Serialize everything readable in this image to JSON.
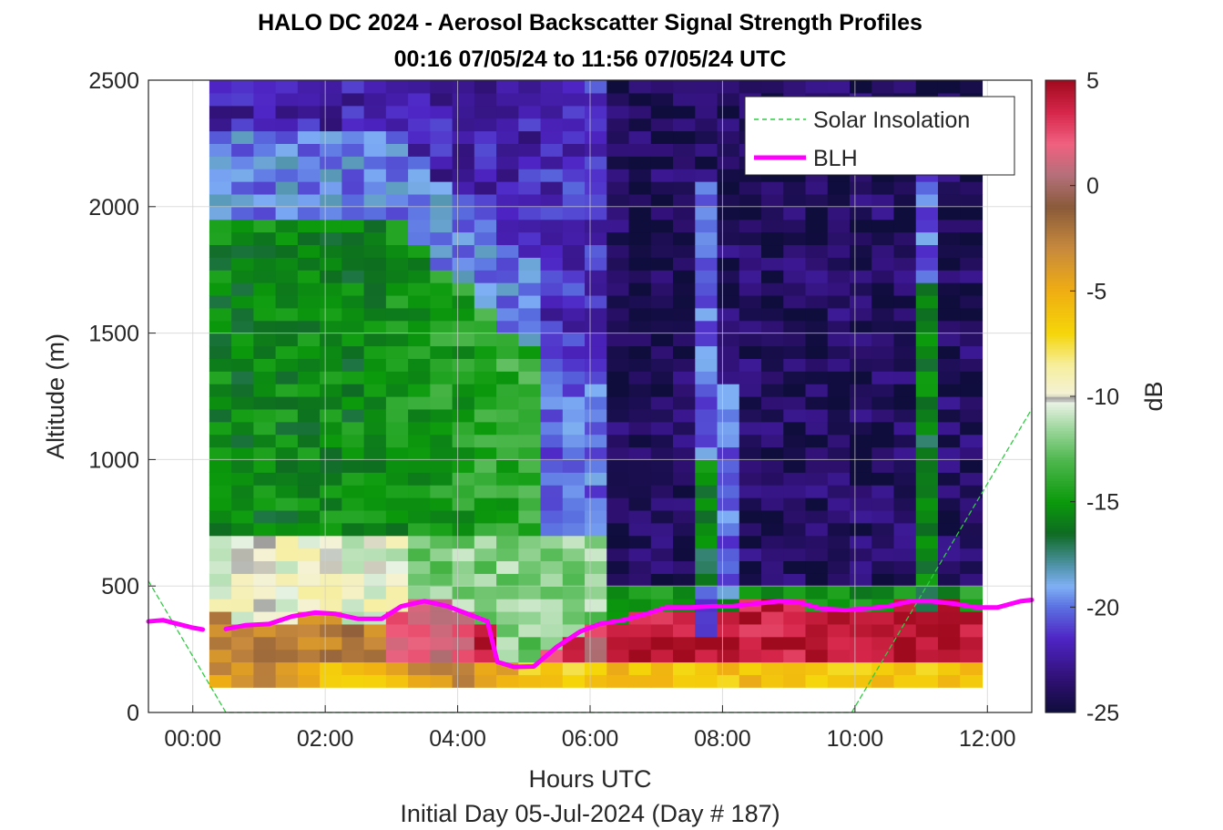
{
  "chart_data": {
    "type": "heatmap",
    "title": "HALO DC 2024 - Aerosol Backscatter Signal Strength Profiles",
    "subtitle": "00:16 07/05/24 to 11:56 07/05/24  UTC",
    "xlabel": "Hours UTC",
    "xlabel2": "Initial Day 05-Jul-2024 (Day # 187)",
    "ylabel": "Altitude (m)",
    "xlim": [
      -0.67,
      12.67
    ],
    "ylim": [
      0,
      2500
    ],
    "x_ticks": [
      0,
      2,
      4,
      6,
      8,
      10,
      12
    ],
    "x_tick_labels": [
      "00:00",
      "02:00",
      "04:00",
      "06:00",
      "08:00",
      "10:00",
      "12:00"
    ],
    "y_ticks": [
      0,
      500,
      1000,
      1500,
      2000,
      2500
    ],
    "y_tick_labels": [
      "0",
      "500",
      "1000",
      "1500",
      "2000",
      "2500"
    ],
    "grid": true,
    "colorbar": {
      "label": "dB",
      "clim": [
        -25,
        5
      ],
      "ticks": [
        5,
        0,
        -5,
        -10,
        -15,
        -20,
        -25
      ],
      "tick_labels": [
        "5",
        "0",
        "-5",
        "-10",
        "-15",
        "-20",
        "-25"
      ],
      "colormap": [
        {
          "v": -25,
          "c": "#0e0d3b"
        },
        {
          "v": -23.5,
          "c": "#2e1070"
        },
        {
          "v": -21.5,
          "c": "#4e24c4"
        },
        {
          "v": -20,
          "c": "#5a6fe0"
        },
        {
          "v": -19,
          "c": "#7fb0f5"
        },
        {
          "v": -18,
          "c": "#4f93a8"
        },
        {
          "v": -16.5,
          "c": "#0e6b22"
        },
        {
          "v": -15,
          "c": "#0b9a0b"
        },
        {
          "v": -13,
          "c": "#4fb84f"
        },
        {
          "v": -11.5,
          "c": "#9ed79e"
        },
        {
          "v": -10.3,
          "c": "#e9f2e4"
        },
        {
          "v": -10.1,
          "c": "#9a9a9a"
        },
        {
          "v": -9.9,
          "c": "#f4f2d6"
        },
        {
          "v": -8.5,
          "c": "#f6ee9c"
        },
        {
          "v": -7,
          "c": "#f5d60a"
        },
        {
          "v": -5,
          "c": "#f0ae12"
        },
        {
          "v": -3,
          "c": "#c88a3c"
        },
        {
          "v": -1,
          "c": "#8a5a3a"
        },
        {
          "v": 0.5,
          "c": "#b4707a"
        },
        {
          "v": 2,
          "c": "#f0607f"
        },
        {
          "v": 3.5,
          "c": "#d6264a"
        },
        {
          "v": 5,
          "c": "#a00a1e"
        }
      ]
    },
    "heatmap": {
      "x_start": 0.25,
      "x_end": 11.92,
      "y_start": 100,
      "y_end": 2500,
      "n_x": 35,
      "n_y": 48,
      "unit": "dB"
    },
    "series": [
      {
        "name": "Solar Insolation",
        "style": "dashed",
        "color": "#2ecc40",
        "x": [
          -0.67,
          0.5,
          9.95,
          12.67
        ],
        "y": [
          520,
          0,
          0,
          1200
        ]
      },
      {
        "name": "BLH",
        "style": "solid",
        "color": "#ff00ff",
        "x": [
          -0.67,
          -0.45,
          0.0,
          0.15,
          null,
          0.5,
          0.8,
          1.15,
          1.5,
          1.85,
          2.15,
          2.5,
          2.85,
          3.15,
          3.5,
          3.85,
          4.15,
          4.45,
          4.6,
          4.85,
          5.15,
          5.5,
          5.85,
          6.15,
          6.5,
          6.85,
          7.15,
          7.5,
          7.85,
          8.15,
          8.5,
          8.85,
          9.15,
          9.5,
          9.85,
          10.15,
          10.5,
          10.85,
          11.15,
          11.5,
          11.85,
          12.15,
          12.5,
          12.67
        ],
        "y": [
          360,
          365,
          335,
          328,
          null,
          330,
          345,
          350,
          380,
          395,
          390,
          370,
          370,
          420,
          440,
          420,
          390,
          360,
          200,
          180,
          182,
          260,
          320,
          350,
          365,
          390,
          415,
          415,
          420,
          420,
          430,
          440,
          435,
          410,
          405,
          410,
          420,
          440,
          440,
          430,
          415,
          415,
          440,
          445
        ]
      }
    ],
    "legend": {
      "position": "top-right",
      "entries": [
        "Solar Insolation",
        "BLH"
      ]
    }
  }
}
